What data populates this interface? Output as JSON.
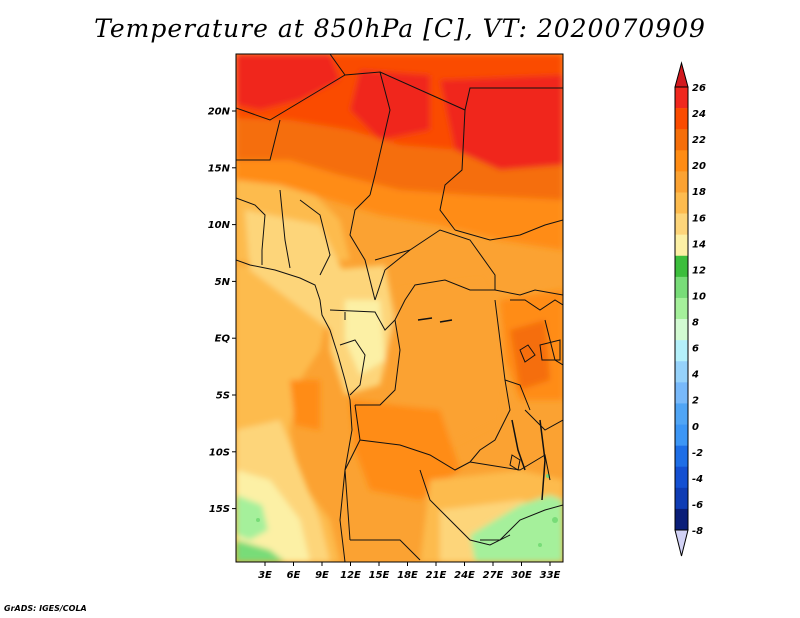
{
  "title": "Temperature at 850hPa [C], VT: 2020070909",
  "credit": "GrADS: IGES/COLA",
  "map": {
    "variable": "Temperature at 850hPa",
    "units": "C",
    "valid_time": "2020070909",
    "lat_labels": [
      "20N",
      "15N",
      "10N",
      "5N",
      "EQ",
      "5S",
      "10S",
      "15S"
    ],
    "lon_labels": [
      "3E",
      "6E",
      "9E",
      "12E",
      "15E",
      "18E",
      "21E",
      "24E",
      "27E",
      "30E",
      "33E"
    ]
  },
  "colorbar": {
    "labels": [
      "26",
      "24",
      "22",
      "20",
      "18",
      "16",
      "14",
      "12",
      "10",
      "8",
      "6",
      "4",
      "2",
      "0",
      "-2",
      "-4",
      "-6",
      "-8"
    ],
    "colors": [
      "#f0281e",
      "#fa4b00",
      "#f56e0a",
      "#ff8c14",
      "#fba232",
      "#fdbb4e",
      "#fdd57a",
      "#fcf0a5",
      "#3cbe3c",
      "#78dc78",
      "#a5f09b",
      "#d2fad2",
      "#b4f0fa",
      "#96d2fa",
      "#78b9fa",
      "#50a5f5",
      "#3c96f5",
      "#1e6ee6",
      "#1450d2",
      "#0f3cb4",
      "#0a1e78"
    ],
    "top_arrow_color": "#d2191e",
    "bottom_arrow_color": "#d2d2f5"
  }
}
